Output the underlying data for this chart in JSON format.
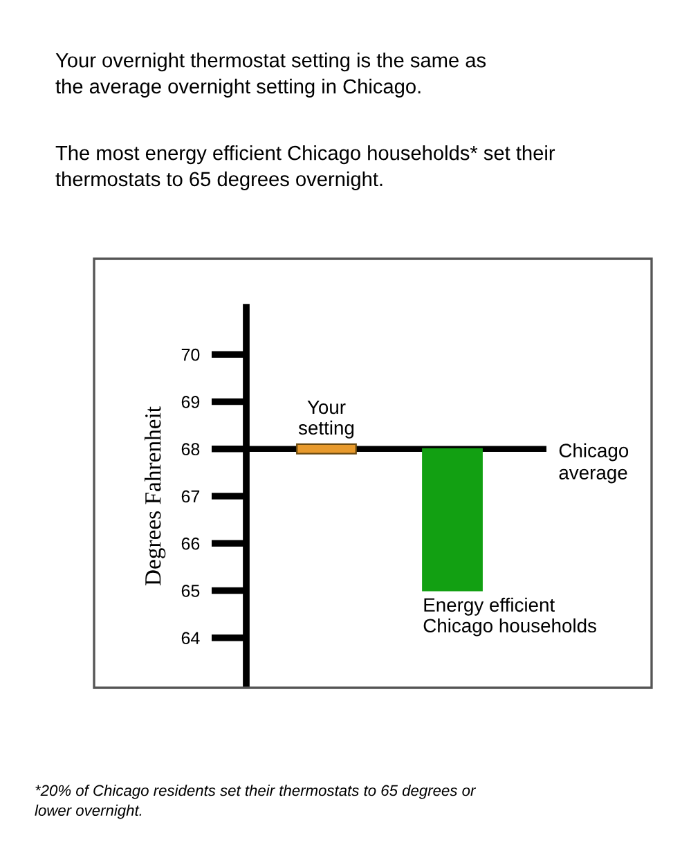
{
  "chart_data": {
    "type": "bar",
    "categories": [
      "Your\nsetting",
      "Energy efficient\nChicago households"
    ],
    "values": [
      0.2,
      -3
    ],
    "base": [
      67.9,
      68
    ],
    "colors": [
      "#e89a2c",
      "#12a012"
    ],
    "ylabel": "Degrees Fahrenheit",
    "ylim": [
      63,
      71
    ],
    "yticks": [
      64,
      65,
      66,
      67,
      68,
      69,
      70
    ],
    "ref_lines": [
      {
        "axis": "y",
        "value": 68,
        "label": "Chicago\naverage",
        "color": "#000000"
      }
    ],
    "grid": false,
    "annotations": [
      "Your overnight thermostat setting is the same as\nthe average overnight setting in Chicago.",
      "The most energy efficient Chicago households* set their\nthermostats to 65 degrees overnight.",
      "*20% of Chicago residents set their thermostats to 65 degrees or\nlower overnight."
    ]
  }
}
